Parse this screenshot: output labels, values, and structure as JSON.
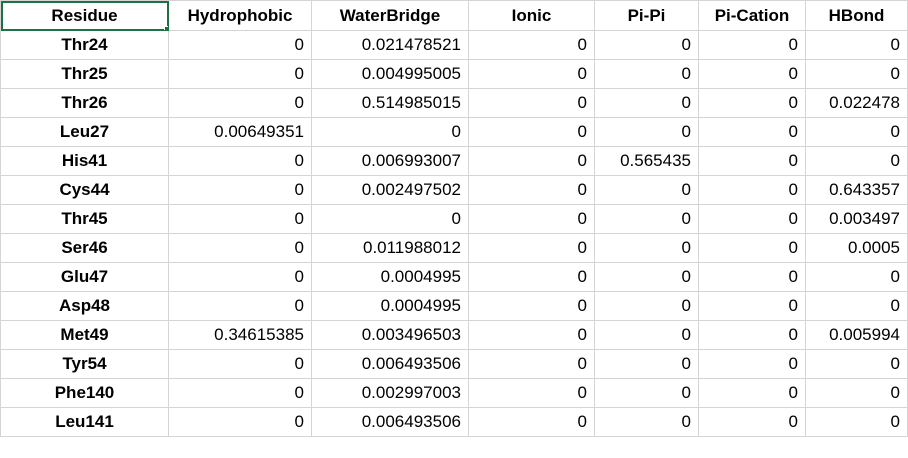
{
  "headers": [
    "Residue",
    "Hydrophobic",
    "WaterBridge",
    "Ionic",
    "Pi-Pi",
    "Pi-Cation",
    "HBond"
  ],
  "rows": [
    [
      "Thr24",
      "0",
      "0.021478521",
      "0",
      "0",
      "0",
      "0"
    ],
    [
      "Thr25",
      "0",
      "0.004995005",
      "0",
      "0",
      "0",
      "0"
    ],
    [
      "Thr26",
      "0",
      "0.514985015",
      "0",
      "0",
      "0",
      "0.022478"
    ],
    [
      "Leu27",
      "0.00649351",
      "0",
      "0",
      "0",
      "0",
      "0"
    ],
    [
      "His41",
      "0",
      "0.006993007",
      "0",
      "0.565435",
      "0",
      "0"
    ],
    [
      "Cys44",
      "0",
      "0.002497502",
      "0",
      "0",
      "0",
      "0.643357"
    ],
    [
      "Thr45",
      "0",
      "0",
      "0",
      "0",
      "0",
      "0.003497"
    ],
    [
      "Ser46",
      "0",
      "0.011988012",
      "0",
      "0",
      "0",
      "0.0005"
    ],
    [
      "Glu47",
      "0",
      "0.0004995",
      "0",
      "0",
      "0",
      "0"
    ],
    [
      "Asp48",
      "0",
      "0.0004995",
      "0",
      "0",
      "0",
      "0"
    ],
    [
      "Met49",
      "0.34615385",
      "0.003496503",
      "0",
      "0",
      "0",
      "0.005994"
    ],
    [
      "Tyr54",
      "0",
      "0.006493506",
      "0",
      "0",
      "0",
      "0"
    ],
    [
      "Phe140",
      "0",
      "0.002997003",
      "0",
      "0",
      "0",
      "0"
    ],
    [
      "Leu141",
      "0",
      "0.006493506",
      "0",
      "0",
      "0",
      "0"
    ]
  ],
  "selection_color": "#1e7145",
  "gridline_color": "#d4d4d4"
}
